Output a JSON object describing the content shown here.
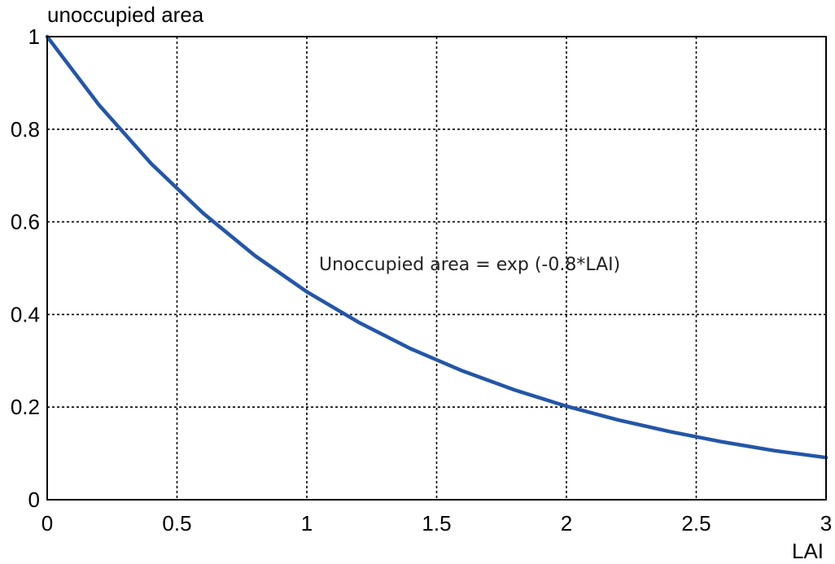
{
  "chart_data": {
    "type": "line",
    "ylabel": "unoccupied area",
    "xlabel": "LAI",
    "annotation": "Unoccupied area = exp (-0.8*LAI)",
    "xlim": [
      0,
      3
    ],
    "ylim": [
      0,
      1
    ],
    "grid": true,
    "x_ticks": [
      "0",
      "0.5",
      "1",
      "1.5",
      "2",
      "2.5",
      "3"
    ],
    "y_ticks": [
      "0",
      "0.2",
      "0.4",
      "0.6",
      "0.8",
      "1"
    ],
    "series": [
      {
        "color": "#2356a8",
        "x": [
          0,
          0.2,
          0.4,
          0.6,
          0.8,
          1.0,
          1.2,
          1.4,
          1.6,
          1.8,
          2.0,
          2.2,
          2.4,
          2.6,
          2.8,
          3.0
        ],
        "y": [
          1.0,
          0.852,
          0.726,
          0.619,
          0.527,
          0.449,
          0.383,
          0.326,
          0.278,
          0.237,
          0.202,
          0.172,
          0.147,
          0.125,
          0.106,
          0.091
        ]
      }
    ]
  }
}
